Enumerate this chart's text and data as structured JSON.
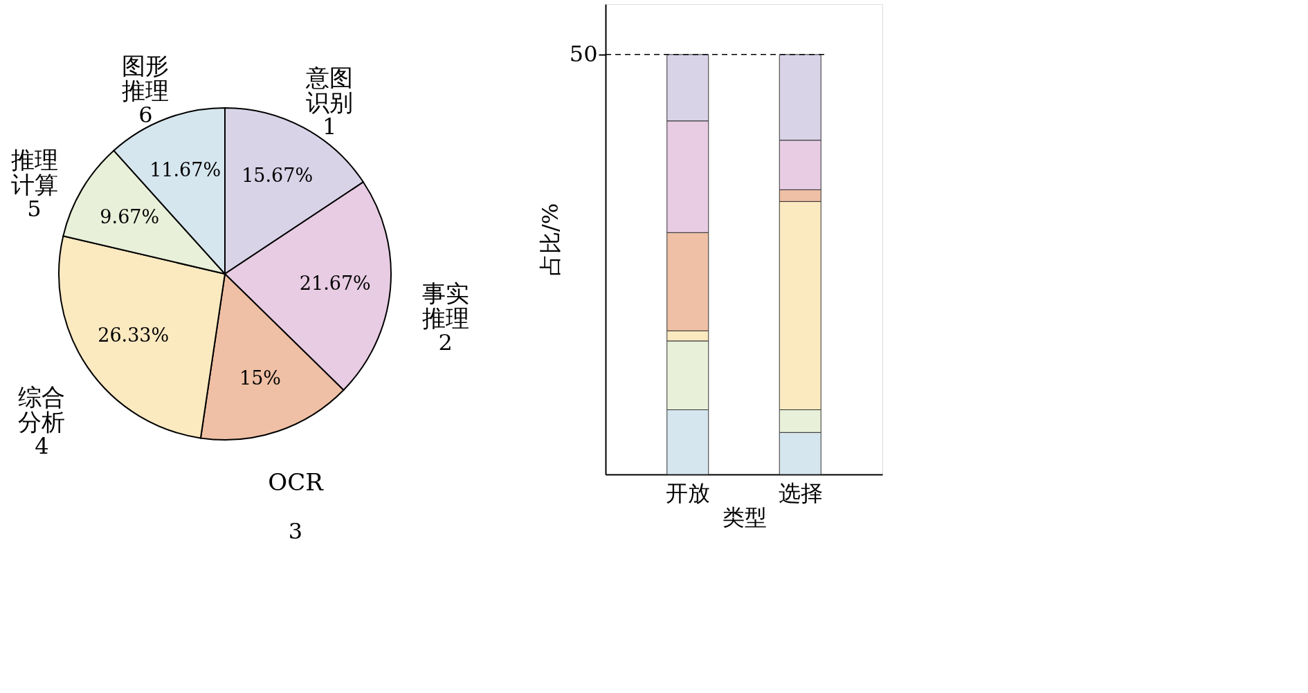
{
  "chart_data": [
    {
      "type": "pie",
      "categories": [
        "意图识别",
        "事实推理",
        "OCR",
        "综合分析",
        "推理计算",
        "图形推理"
      ],
      "values": [
        15.67,
        21.67,
        15,
        26.33,
        9.67,
        11.67
      ],
      "value_labels": [
        "15.67%",
        "21.67%",
        "15%",
        "26.33%",
        "9.67%",
        "11.67%"
      ],
      "colors": [
        "#d9d3e8",
        "#e8cce3",
        "#efc0a5",
        "#fbe9c0",
        "#e9f0d9",
        "#d6e6ee"
      ],
      "annotations": [
        "1",
        "2",
        "3",
        "4",
        "5",
        "6"
      ]
    },
    {
      "type": "bar",
      "stacked": true,
      "categories": [
        "开放",
        "选择"
      ],
      "xlabel": "类型",
      "ylabel": "占比/%",
      "ylim": [
        0,
        50
      ],
      "yticks": [
        50
      ],
      "series": [
        {
          "color": "#d6e6ee",
          "values": [
            7.7,
            5.0
          ]
        },
        {
          "color": "#e9f0d9",
          "values": [
            8.2,
            2.7
          ]
        },
        {
          "color": "#fbe9c0",
          "values": [
            1.2,
            24.8
          ]
        },
        {
          "color": "#efc0a5",
          "values": [
            11.7,
            1.4
          ]
        },
        {
          "color": "#e8cce3",
          "values": [
            13.3,
            5.9
          ]
        },
        {
          "color": "#d9d3e8",
          "values": [
            7.9,
            10.2
          ]
        }
      ],
      "ref_lines": [
        {
          "axis": "y",
          "value": 50,
          "line_style": "dashed"
        }
      ]
    }
  ]
}
